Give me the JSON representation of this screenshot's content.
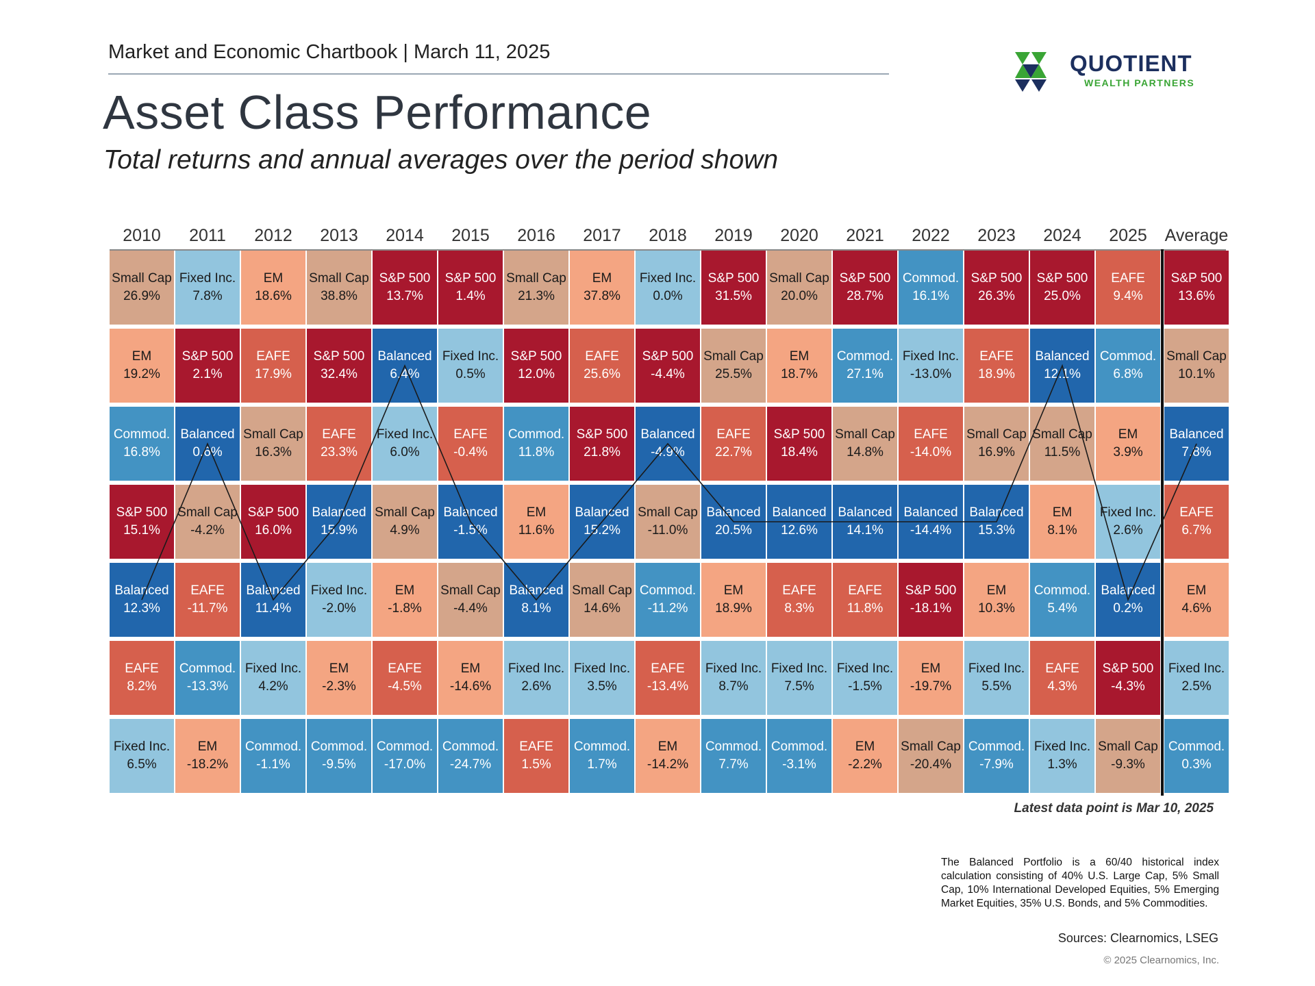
{
  "header": {
    "top_line": "Market and Economic Chartbook | March 11, 2025",
    "title": "Asset Class Performance",
    "subtitle": "Total returns and annual averages over the period shown"
  },
  "logo": {
    "name": "QUOTIENT",
    "tagline": "WEALTH PARTNERS",
    "colors": [
      "#1c2f5e",
      "#3aa535"
    ]
  },
  "colors": {
    "S&P 500": "#a8182e",
    "Small Cap": "#d4a58a",
    "EM": "#f4a582",
    "EAFE": "#d6604d",
    "Balanced": "#2166ac",
    "Commod.": "#4393c3",
    "Fixed Inc.": "#92c5de"
  },
  "chart_data": {
    "type": "table",
    "columns": [
      "2010",
      "2011",
      "2012",
      "2013",
      "2014",
      "2015",
      "2016",
      "2017",
      "2018",
      "2019",
      "2020",
      "2021",
      "2022",
      "2023",
      "2024",
      "2025",
      "Average"
    ],
    "highlight_series": "Balanced",
    "cells": [
      [
        [
          "Small Cap",
          "26.9%"
        ],
        [
          "EM",
          "19.2%"
        ],
        [
          "Commod.",
          "16.8%"
        ],
        [
          "S&P 500",
          "15.1%"
        ],
        [
          "Balanced",
          "12.3%"
        ],
        [
          "EAFE",
          "8.2%"
        ],
        [
          "Fixed Inc.",
          "6.5%"
        ]
      ],
      [
        [
          "Fixed Inc.",
          "7.8%"
        ],
        [
          "S&P 500",
          "2.1%"
        ],
        [
          "Balanced",
          "0.6%"
        ],
        [
          "Small Cap",
          "-4.2%"
        ],
        [
          "EAFE",
          "-11.7%"
        ],
        [
          "Commod.",
          "-13.3%"
        ],
        [
          "EM",
          "-18.2%"
        ]
      ],
      [
        [
          "EM",
          "18.6%"
        ],
        [
          "EAFE",
          "17.9%"
        ],
        [
          "Small Cap",
          "16.3%"
        ],
        [
          "S&P 500",
          "16.0%"
        ],
        [
          "Balanced",
          "11.4%"
        ],
        [
          "Fixed Inc.",
          "4.2%"
        ],
        [
          "Commod.",
          "-1.1%"
        ]
      ],
      [
        [
          "Small Cap",
          "38.8%"
        ],
        [
          "S&P 500",
          "32.4%"
        ],
        [
          "EAFE",
          "23.3%"
        ],
        [
          "Balanced",
          "15.9%"
        ],
        [
          "Fixed Inc.",
          "-2.0%"
        ],
        [
          "EM",
          "-2.3%"
        ],
        [
          "Commod.",
          "-9.5%"
        ]
      ],
      [
        [
          "S&P 500",
          "13.7%"
        ],
        [
          "Balanced",
          "6.4%"
        ],
        [
          "Fixed Inc.",
          "6.0%"
        ],
        [
          "Small Cap",
          "4.9%"
        ],
        [
          "EM",
          "-1.8%"
        ],
        [
          "EAFE",
          "-4.5%"
        ],
        [
          "Commod.",
          "-17.0%"
        ]
      ],
      [
        [
          "S&P 500",
          "1.4%"
        ],
        [
          "Fixed Inc.",
          "0.5%"
        ],
        [
          "EAFE",
          "-0.4%"
        ],
        [
          "Balanced",
          "-1.5%"
        ],
        [
          "Small Cap",
          "-4.4%"
        ],
        [
          "EM",
          "-14.6%"
        ],
        [
          "Commod.",
          "-24.7%"
        ]
      ],
      [
        [
          "Small Cap",
          "21.3%"
        ],
        [
          "S&P 500",
          "12.0%"
        ],
        [
          "Commod.",
          "11.8%"
        ],
        [
          "EM",
          "11.6%"
        ],
        [
          "Balanced",
          "8.1%"
        ],
        [
          "Fixed Inc.",
          "2.6%"
        ],
        [
          "EAFE",
          "1.5%"
        ]
      ],
      [
        [
          "EM",
          "37.8%"
        ],
        [
          "EAFE",
          "25.6%"
        ],
        [
          "S&P 500",
          "21.8%"
        ],
        [
          "Balanced",
          "15.2%"
        ],
        [
          "Small Cap",
          "14.6%"
        ],
        [
          "Fixed Inc.",
          "3.5%"
        ],
        [
          "Commod.",
          "1.7%"
        ]
      ],
      [
        [
          "Fixed Inc.",
          "0.0%"
        ],
        [
          "S&P 500",
          "-4.4%"
        ],
        [
          "Balanced",
          "-4.9%"
        ],
        [
          "Small Cap",
          "-11.0%"
        ],
        [
          "Commod.",
          "-11.2%"
        ],
        [
          "EAFE",
          "-13.4%"
        ],
        [
          "EM",
          "-14.2%"
        ]
      ],
      [
        [
          "S&P 500",
          "31.5%"
        ],
        [
          "Small Cap",
          "25.5%"
        ],
        [
          "EAFE",
          "22.7%"
        ],
        [
          "Balanced",
          "20.5%"
        ],
        [
          "EM",
          "18.9%"
        ],
        [
          "Fixed Inc.",
          "8.7%"
        ],
        [
          "Commod.",
          "7.7%"
        ]
      ],
      [
        [
          "Small Cap",
          "20.0%"
        ],
        [
          "EM",
          "18.7%"
        ],
        [
          "S&P 500",
          "18.4%"
        ],
        [
          "Balanced",
          "12.6%"
        ],
        [
          "EAFE",
          "8.3%"
        ],
        [
          "Fixed Inc.",
          "7.5%"
        ],
        [
          "Commod.",
          "-3.1%"
        ]
      ],
      [
        [
          "S&P 500",
          "28.7%"
        ],
        [
          "Commod.",
          "27.1%"
        ],
        [
          "Small Cap",
          "14.8%"
        ],
        [
          "Balanced",
          "14.1%"
        ],
        [
          "EAFE",
          "11.8%"
        ],
        [
          "Fixed Inc.",
          "-1.5%"
        ],
        [
          "EM",
          "-2.2%"
        ]
      ],
      [
        [
          "Commod.",
          "16.1%"
        ],
        [
          "Fixed Inc.",
          "-13.0%"
        ],
        [
          "EAFE",
          "-14.0%"
        ],
        [
          "Balanced",
          "-14.4%"
        ],
        [
          "S&P 500",
          "-18.1%"
        ],
        [
          "EM",
          "-19.7%"
        ],
        [
          "Small Cap",
          "-20.4%"
        ]
      ],
      [
        [
          "S&P 500",
          "26.3%"
        ],
        [
          "EAFE",
          "18.9%"
        ],
        [
          "Small Cap",
          "16.9%"
        ],
        [
          "Balanced",
          "15.3%"
        ],
        [
          "EM",
          "10.3%"
        ],
        [
          "Fixed Inc.",
          "5.5%"
        ],
        [
          "Commod.",
          "-7.9%"
        ]
      ],
      [
        [
          "S&P 500",
          "25.0%"
        ],
        [
          "Balanced",
          "12.1%"
        ],
        [
          "Small Cap",
          "11.5%"
        ],
        [
          "EM",
          "8.1%"
        ],
        [
          "Commod.",
          "5.4%"
        ],
        [
          "EAFE",
          "4.3%"
        ],
        [
          "Fixed Inc.",
          "1.3%"
        ]
      ],
      [
        [
          "EAFE",
          "9.4%"
        ],
        [
          "Commod.",
          "6.8%"
        ],
        [
          "EM",
          "3.9%"
        ],
        [
          "Fixed Inc.",
          "2.6%"
        ],
        [
          "Balanced",
          "0.2%"
        ],
        [
          "S&P 500",
          "-4.3%"
        ],
        [
          "Small Cap",
          "-9.3%"
        ]
      ],
      [
        [
          "S&P 500",
          "13.6%"
        ],
        [
          "Small Cap",
          "10.1%"
        ],
        [
          "Balanced",
          "7.8%"
        ],
        [
          "EAFE",
          "6.7%"
        ],
        [
          "EM",
          "4.6%"
        ],
        [
          "Fixed Inc.",
          "2.5%"
        ],
        [
          "Commod.",
          "0.3%"
        ]
      ]
    ]
  },
  "footer": {
    "latest": "Latest data point is Mar 10, 2025",
    "note": "The Balanced Portfolio is a 60/40 historical index calculation consisting of 40% U.S. Large Cap, 5% Small Cap, 10% International Developed Equities, 5% Emerging Market Equities, 35% U.S. Bonds, and 5% Commodities.",
    "sources": "Sources: Clearnomics, LSEG",
    "copyright": "© 2025 Clearnomics, Inc."
  }
}
